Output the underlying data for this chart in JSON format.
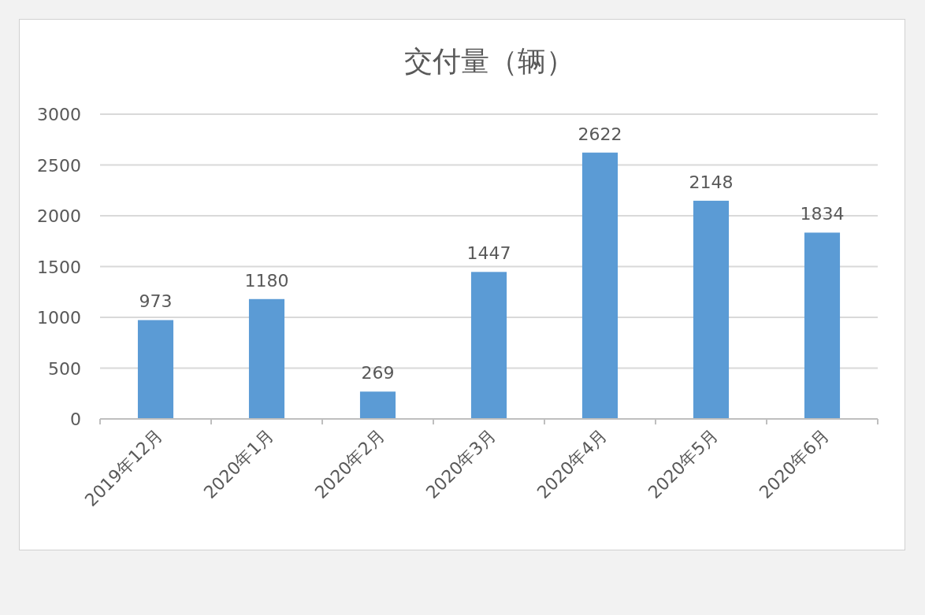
{
  "chart_data": {
    "type": "bar",
    "title": "交付量（辆）",
    "categories": [
      "2019年12月",
      "2020年1月",
      "2020年2月",
      "2020年3月",
      "2020年4月",
      "2020年5月",
      "2020年6月"
    ],
    "values": [
      973,
      1180,
      269,
      1447,
      2622,
      2148,
      1834
    ],
    "color": "#5b9bd5",
    "ylim": [
      0,
      3000
    ],
    "yticks": [
      0,
      500,
      1000,
      1500,
      2000,
      2500,
      3000
    ],
    "grid": "y",
    "data_labels": true
  }
}
